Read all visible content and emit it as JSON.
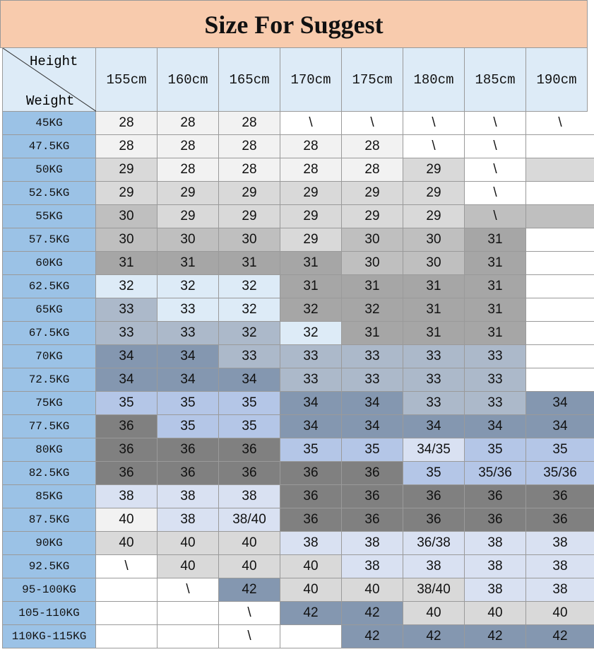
{
  "header": {
    "title": "Size For Suggest"
  },
  "table": {
    "corner_top": "Height",
    "corner_bottom": "Weight",
    "header_fill": "#ddebf7",
    "row_label_fill": "#9bc2e6",
    "columns": [
      "155cm",
      "160cm",
      "165cm",
      "170cm",
      "175cm",
      "180cm",
      "185cm",
      "190cm"
    ],
    "rows": [
      {
        "label": "45KG",
        "cells": [
          28,
          28,
          28,
          "\\",
          "\\",
          "\\",
          "\\",
          "\\"
        ],
        "fills": [
          "#f2f2f2",
          "#f2f2f2",
          "#f2f2f2",
          "#ffffff",
          "#ffffff",
          "#ffffff",
          "#ffffff",
          "#ffffff"
        ]
      },
      {
        "label": "47.5KG",
        "cells": [
          28,
          28,
          28,
          28,
          28,
          "\\",
          "\\",
          null
        ],
        "fills": [
          "#f2f2f2",
          "#f2f2f2",
          "#f2f2f2",
          "#f2f2f2",
          "#f2f2f2",
          "#ffffff",
          "#ffffff",
          "#ffffff"
        ]
      },
      {
        "label": "50KG",
        "cells": [
          29,
          28,
          28,
          28,
          28,
          29,
          "\\",
          null
        ],
        "fills": [
          "#d9d9d9",
          "#f2f2f2",
          "#f2f2f2",
          "#f2f2f2",
          "#f2f2f2",
          "#d9d9d9",
          "#ffffff",
          "#d9d9d9"
        ]
      },
      {
        "label": "52.5KG",
        "cells": [
          29,
          29,
          29,
          29,
          29,
          29,
          "\\",
          null
        ],
        "fills": [
          "#d9d9d9",
          "#d9d9d9",
          "#d9d9d9",
          "#d9d9d9",
          "#d9d9d9",
          "#d9d9d9",
          "#ffffff",
          "#ffffff"
        ]
      },
      {
        "label": "55KG",
        "cells": [
          30,
          29,
          29,
          29,
          29,
          29,
          "\\",
          null
        ],
        "fills": [
          "#bfbfbf",
          "#d9d9d9",
          "#d9d9d9",
          "#d9d9d9",
          "#d9d9d9",
          "#d9d9d9",
          "#bfbfbf",
          "#bfbfbf"
        ]
      },
      {
        "label": "57.5KG",
        "cells": [
          30,
          30,
          30,
          29,
          30,
          30,
          31,
          null
        ],
        "fills": [
          "#bfbfbf",
          "#bfbfbf",
          "#bfbfbf",
          "#d9d9d9",
          "#bfbfbf",
          "#bfbfbf",
          "#a6a6a6",
          "#ffffff"
        ]
      },
      {
        "label": "60KG",
        "cells": [
          31,
          31,
          31,
          31,
          30,
          30,
          31,
          null
        ],
        "fills": [
          "#a6a6a6",
          "#a6a6a6",
          "#a6a6a6",
          "#a6a6a6",
          "#bfbfbf",
          "#bfbfbf",
          "#a6a6a6",
          "#ffffff"
        ]
      },
      {
        "label": "62.5KG",
        "cells": [
          32,
          32,
          32,
          31,
          31,
          31,
          31,
          null
        ],
        "fills": [
          "#ddebf7",
          "#ddebf7",
          "#ddebf7",
          "#a6a6a6",
          "#a6a6a6",
          "#a6a6a6",
          "#a6a6a6",
          "#ffffff"
        ]
      },
      {
        "label": "65KG",
        "cells": [
          33,
          33,
          32,
          32,
          32,
          31,
          31,
          null
        ],
        "fills": [
          "#acb9ca",
          "#ddebf7",
          "#ddebf7",
          "#a6a6a6",
          "#a6a6a6",
          "#a6a6a6",
          "#a6a6a6",
          "#ffffff"
        ]
      },
      {
        "label": "67.5KG",
        "cells": [
          33,
          33,
          32,
          32,
          31,
          31,
          31,
          null
        ],
        "fills": [
          "#acb9ca",
          "#acb9ca",
          "#acb9ca",
          "#ddebf7",
          "#a6a6a6",
          "#a6a6a6",
          "#a6a6a6",
          "#ffffff"
        ]
      },
      {
        "label": "70KG",
        "cells": [
          34,
          34,
          33,
          33,
          33,
          33,
          33,
          null
        ],
        "fills": [
          "#8497b0",
          "#8497b0",
          "#acb9ca",
          "#acb9ca",
          "#acb9ca",
          "#acb9ca",
          "#acb9ca",
          "#ffffff"
        ]
      },
      {
        "label": "72.5KG",
        "cells": [
          34,
          34,
          34,
          33,
          33,
          33,
          33,
          null
        ],
        "fills": [
          "#8497b0",
          "#8497b0",
          "#8497b0",
          "#acb9ca",
          "#acb9ca",
          "#acb9ca",
          "#acb9ca",
          "#ffffff"
        ]
      },
      {
        "label": "75KG",
        "cells": [
          35,
          35,
          35,
          34,
          34,
          33,
          33,
          34
        ],
        "fills": [
          "#b4c6e7",
          "#b4c6e7",
          "#b4c6e7",
          "#8497b0",
          "#8497b0",
          "#acb9ca",
          "#acb9ca",
          "#8497b0"
        ]
      },
      {
        "label": "77.5KG",
        "cells": [
          36,
          35,
          35,
          34,
          34,
          34,
          34,
          34
        ],
        "fills": [
          "#808080",
          "#b4c6e7",
          "#b4c6e7",
          "#8497b0",
          "#8497b0",
          "#8497b0",
          "#8497b0",
          "#8497b0"
        ]
      },
      {
        "label": "80KG",
        "cells": [
          36,
          36,
          36,
          35,
          35,
          "34/35",
          35,
          35
        ],
        "fills": [
          "#808080",
          "#808080",
          "#808080",
          "#b4c6e7",
          "#b4c6e7",
          "#d9e1f2",
          "#b4c6e7",
          "#b4c6e7"
        ]
      },
      {
        "label": "82.5KG",
        "cells": [
          36,
          36,
          36,
          36,
          36,
          35,
          "35/36",
          "35/36"
        ],
        "fills": [
          "#808080",
          "#808080",
          "#808080",
          "#808080",
          "#808080",
          "#b4c6e7",
          "#b4c6e7",
          "#b4c6e7"
        ]
      },
      {
        "label": "85KG",
        "cells": [
          38,
          38,
          38,
          36,
          36,
          36,
          36,
          36
        ],
        "fills": [
          "#d9e1f2",
          "#d9e1f2",
          "#d9e1f2",
          "#808080",
          "#808080",
          "#808080",
          "#808080",
          "#808080"
        ]
      },
      {
        "label": "87.5KG",
        "cells": [
          40,
          38,
          "38/40",
          36,
          36,
          36,
          36,
          36
        ],
        "fills": [
          "#f2f2f2",
          "#d9e1f2",
          "#d9e1f2",
          "#808080",
          "#808080",
          "#808080",
          "#808080",
          "#808080"
        ]
      },
      {
        "label": "90KG",
        "cells": [
          40,
          40,
          40,
          38,
          38,
          "36/38",
          38,
          38
        ],
        "fills": [
          "#d9d9d9",
          "#d9d9d9",
          "#d9d9d9",
          "#d9e1f2",
          "#d9e1f2",
          "#d9e1f2",
          "#d9e1f2",
          "#d9e1f2"
        ]
      },
      {
        "label": "92.5KG",
        "cells": [
          "\\",
          40,
          40,
          40,
          38,
          38,
          38,
          38
        ],
        "fills": [
          "#ffffff",
          "#d9d9d9",
          "#d9d9d9",
          "#d9d9d9",
          "#d9e1f2",
          "#d9e1f2",
          "#d9e1f2",
          "#d9e1f2"
        ]
      },
      {
        "label": "95-100KG",
        "cells": [
          null,
          "\\",
          42,
          40,
          40,
          "38/40",
          38,
          38
        ],
        "fills": [
          "#ffffff",
          "#ffffff",
          "#8497b0",
          "#d9d9d9",
          "#d9d9d9",
          "#d9d9d9",
          "#d9e1f2",
          "#d9e1f2"
        ]
      },
      {
        "label": "105-110KG",
        "cells": [
          null,
          null,
          "\\",
          42,
          42,
          40,
          40,
          40
        ],
        "fills": [
          "#ffffff",
          "#ffffff",
          "#ffffff",
          "#8497b0",
          "#8497b0",
          "#d9d9d9",
          "#d9d9d9",
          "#d9d9d9"
        ]
      },
      {
        "label": "110KG-115KG",
        "cells": [
          null,
          null,
          "\\",
          null,
          42,
          42,
          42,
          42
        ],
        "fills": [
          "#ffffff",
          "#ffffff",
          "#ffffff",
          "#ffffff",
          "#8497b0",
          "#8497b0",
          "#8497b0",
          "#8497b0"
        ]
      }
    ]
  }
}
